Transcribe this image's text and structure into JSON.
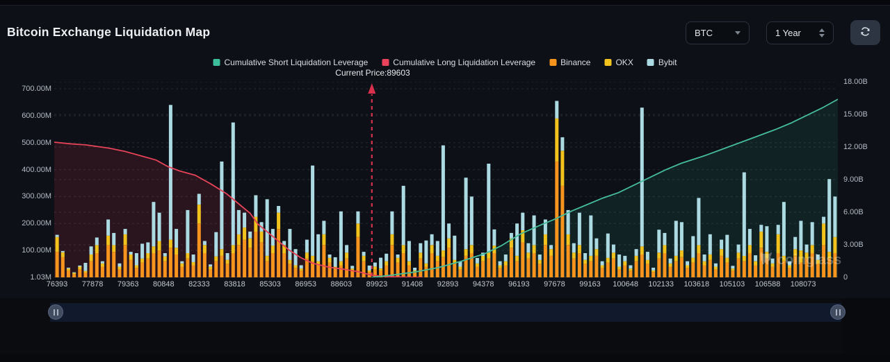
{
  "header": {
    "title": "Bitcoin Exchange Liquidation Map",
    "symbol_select": {
      "value": "BTC"
    },
    "period_select": {
      "value": "1 Year"
    }
  },
  "icons": {
    "refresh": "circular-arrows",
    "caret_down": "triangle-down",
    "period_spinner": "up-down-chevrons",
    "slider_grip": "double-bar"
  },
  "legend": [
    {
      "label": "Cumulative Short Liquidation Leverage",
      "color": "#3CBD9C"
    },
    {
      "label": "Cumulative Long Liquidation Leverage",
      "color": "#E8435A"
    },
    {
      "label": "Binance",
      "color": "#F7941E"
    },
    {
      "label": "OKX",
      "color": "#F2C31C"
    },
    {
      "label": "Bybit",
      "color": "#ACDAE3"
    }
  ],
  "annotation": {
    "current_price_label": "Current Price:89603",
    "current_price": 89603
  },
  "watermark": {
    "text": "coinglass"
  },
  "chart_data": {
    "type": "bar",
    "subtype": "stacked-bars-with-cumulative-lines",
    "title": "Bitcoin Exchange Liquidation Map",
    "left_axis": {
      "unit": "M",
      "ylim": [
        0,
        700
      ],
      "ticks": [
        {
          "label": "700.00M",
          "value": 700
        },
        {
          "label": "600.00M",
          "value": 600
        },
        {
          "label": "500.00M",
          "value": 500
        },
        {
          "label": "400.00M",
          "value": 400
        },
        {
          "label": "300.00M",
          "value": 300
        },
        {
          "label": "200.00M",
          "value": 200
        },
        {
          "label": "100.00M",
          "value": 100
        },
        {
          "label": "1.03M",
          "value": 1.03
        }
      ]
    },
    "right_axis": {
      "unit": "B",
      "ylim": [
        0,
        18
      ],
      "ticks": [
        {
          "label": "18.00B",
          "value": 18
        },
        {
          "label": "15.00B",
          "value": 15
        },
        {
          "label": "12.00B",
          "value": 12
        },
        {
          "label": "9.00B",
          "value": 9
        },
        {
          "label": "6.00B",
          "value": 6
        },
        {
          "label": "3.00B",
          "value": 3
        },
        {
          "label": "0",
          "value": 0
        }
      ]
    },
    "x_labels": [
      "76393",
      "77878",
      "79363",
      "80848",
      "82333",
      "83818",
      "85303",
      "86953",
      "88603",
      "89923",
      "91408",
      "92893",
      "94378",
      "96193",
      "97678",
      "99163",
      "100648",
      "102133",
      "103618",
      "105103",
      "106588",
      "108073"
    ],
    "x_range": [
      76393,
      108073
    ],
    "grid": "dashed",
    "current_price_fraction": 0.4053,
    "bars": {
      "units": "millions USD, per price level, stacked bottom-to-top",
      "series": [
        {
          "name": "Binance",
          "color": "#F7941E",
          "values": [
            95,
            75,
            25,
            12,
            30,
            18,
            60,
            90,
            40,
            120,
            95,
            30,
            120,
            65,
            35,
            55,
            70,
            90,
            100,
            60,
            110,
            85,
            40,
            70,
            45,
            200,
            90,
            30,
            60,
            80,
            50,
            90,
            120,
            140,
            110,
            170,
            130,
            60,
            90,
            180,
            90,
            50,
            35,
            25,
            70,
            60,
            45,
            120,
            55,
            30,
            45,
            70,
            25,
            150,
            60,
            20,
            30,
            25,
            45,
            120,
            55,
            90,
            45,
            20,
            70,
            40,
            90,
            60,
            75,
            110,
            50,
            30,
            80,
            90,
            40,
            60,
            70,
            90,
            35,
            45,
            110,
            60,
            130,
            70,
            90,
            50,
            120,
            80,
            430,
            340,
            120,
            70,
            90,
            50,
            60,
            80,
            35,
            55,
            70,
            30,
            45,
            25,
            60,
            85,
            50,
            20,
            70,
            90,
            40,
            60,
            75,
            35,
            55,
            90,
            45,
            65,
            30,
            80,
            55,
            25,
            70,
            60,
            90,
            45,
            110,
            70,
            40,
            90,
            60,
            35,
            80,
            55,
            70,
            90,
            50,
            120,
            70,
            90
          ]
        },
        {
          "name": "OKX",
          "color": "#F2C31C",
          "values": [
            55,
            18,
            8,
            5,
            10,
            6,
            25,
            30,
            12,
            35,
            25,
            10,
            40,
            20,
            10,
            15,
            20,
            25,
            35,
            18,
            30,
            25,
            12,
            20,
            12,
            70,
            30,
            10,
            18,
            25,
            15,
            30,
            40,
            45,
            35,
            55,
            40,
            20,
            28,
            60,
            30,
            15,
            10,
            8,
            22,
            20,
            15,
            40,
            18,
            10,
            15,
            22,
            8,
            50,
            20,
            6,
            10,
            8,
            15,
            40,
            18,
            30,
            15,
            6,
            22,
            12,
            30,
            20,
            25,
            35,
            15,
            10,
            25,
            30,
            12,
            20,
            22,
            28,
            10,
            15,
            35,
            20,
            45,
            22,
            30,
            15,
            40,
            25,
            160,
            130,
            40,
            22,
            30,
            15,
            20,
            25,
            10,
            18,
            22,
            10,
            15,
            8,
            20,
            30,
            15,
            6,
            22,
            30,
            12,
            20,
            25,
            10,
            18,
            30,
            15,
            20,
            10,
            25,
            18,
            8,
            22,
            20,
            30,
            15,
            60,
            25,
            12,
            70,
            20,
            10,
            25,
            45,
            22,
            30,
            15,
            80,
            25,
            60
          ]
        },
        {
          "name": "Bybit",
          "color": "#ACDAE3",
          "values": [
            8,
            5,
            3,
            2,
            4,
            30,
            30,
            28,
            8,
            60,
            45,
            12,
            20,
            10,
            45,
            55,
            40,
            165,
            105,
            12,
            500,
            70,
            8,
            160,
            28,
            40,
            15,
            8,
            90,
            325,
            25,
            455,
            90,
            55,
            25,
            80,
            35,
            210,
            62,
            25,
            15,
            115,
            60,
            12,
            48,
            335,
            100,
            50,
            12,
            35,
            185,
            28,
            10,
            45,
            15,
            18,
            15,
            40,
            28,
            85,
            12,
            220,
            75,
            10,
            35,
            85,
            40,
            55,
            390,
            55,
            90,
            18,
            265,
            180,
            20,
            12,
            330,
            60,
            15,
            25,
            20,
            120,
            65,
            35,
            110,
            20,
            55,
            15,
            65,
            50,
            90,
            35,
            120,
            25,
            150,
            40,
            15,
            90,
            30,
            45,
            20,
            12,
            25,
            515,
            30,
            10,
            85,
            45,
            18,
            130,
            105,
            15,
            80,
            175,
            25,
            75,
            12,
            35,
            85,
            10,
            30,
            310,
            60,
            22,
            25,
            95,
            18,
            35,
            200,
            15,
            45,
            110,
            30,
            85,
            20,
            25,
            270,
            150
          ]
        }
      ]
    },
    "lines": [
      {
        "name": "Cumulative Long Liquidation Leverage",
        "color": "#E64358",
        "fill": "rgba(220,55,85,0.14)",
        "axis": "right",
        "points": [
          [
            0,
            12.45
          ],
          [
            0.02,
            12.3
          ],
          [
            0.04,
            12.2
          ],
          [
            0.07,
            11.9
          ],
          [
            0.09,
            11.6
          ],
          [
            0.11,
            11.2
          ],
          [
            0.13,
            10.8
          ],
          [
            0.145,
            10.2
          ],
          [
            0.16,
            9.8
          ],
          [
            0.18,
            9.4
          ],
          [
            0.2,
            8.6
          ],
          [
            0.22,
            7.7
          ],
          [
            0.235,
            6.8
          ],
          [
            0.25,
            5.9
          ],
          [
            0.26,
            4.9
          ],
          [
            0.27,
            4.3
          ],
          [
            0.285,
            3.4
          ],
          [
            0.3,
            2.5
          ],
          [
            0.315,
            1.8
          ],
          [
            0.33,
            1.3
          ],
          [
            0.35,
            0.95
          ],
          [
            0.37,
            0.75
          ],
          [
            0.39,
            0.5
          ],
          [
            0.405,
            0.2
          ],
          [
            0.425,
            0.07
          ],
          [
            0.45,
            0.02
          ],
          [
            0.47,
            0
          ]
        ]
      },
      {
        "name": "Cumulative Short Liquidation Leverage",
        "color": "#45BD9B",
        "fill": "rgba(38,166,131,0.13)",
        "axis": "right",
        "points": [
          [
            0.405,
            0
          ],
          [
            0.43,
            0.2
          ],
          [
            0.46,
            0.5
          ],
          [
            0.49,
            0.9
          ],
          [
            0.52,
            1.5
          ],
          [
            0.55,
            2.2
          ],
          [
            0.57,
            2.9
          ],
          [
            0.595,
            4.0
          ],
          [
            0.62,
            4.8
          ],
          [
            0.64,
            5.4
          ],
          [
            0.66,
            6.1
          ],
          [
            0.68,
            6.7
          ],
          [
            0.7,
            7.3
          ],
          [
            0.72,
            7.8
          ],
          [
            0.74,
            8.5
          ],
          [
            0.76,
            9.2
          ],
          [
            0.78,
            9.9
          ],
          [
            0.8,
            10.5
          ],
          [
            0.83,
            11.2
          ],
          [
            0.86,
            12.0
          ],
          [
            0.89,
            12.8
          ],
          [
            0.92,
            13.6
          ],
          [
            0.94,
            14.2
          ],
          [
            0.96,
            14.9
          ],
          [
            0.98,
            15.6
          ],
          [
            1.0,
            16.4
          ]
        ]
      }
    ]
  }
}
